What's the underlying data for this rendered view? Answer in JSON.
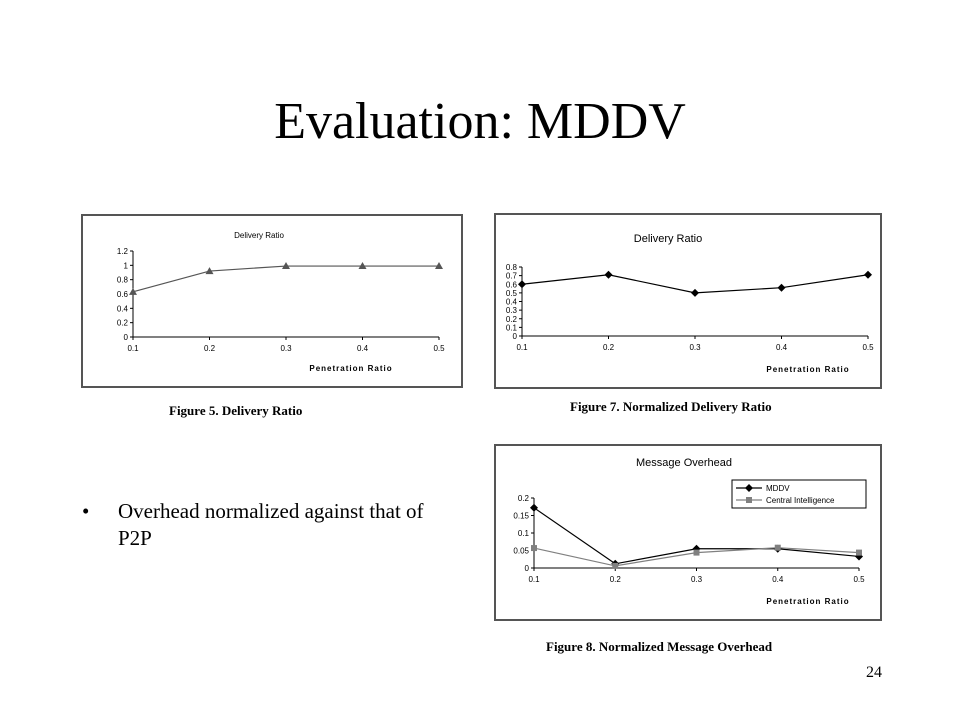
{
  "slide": {
    "title": "Evaluation: MDDV",
    "bullet": "Overhead normalized against that of P2P",
    "page_number": "24"
  },
  "chart_data": [
    {
      "id": "fig5",
      "type": "line",
      "title": "Delivery Ratio",
      "caption": "Figure 5. Delivery Ratio",
      "xlabel": "Penetration Ratio",
      "ylabel": "",
      "x": [
        0.1,
        0.2,
        0.3,
        0.4,
        0.5
      ],
      "x_tick_labels": [
        "0.1",
        "0.2",
        "0.3",
        "0.4",
        "0.5"
      ],
      "ylim": [
        0,
        1.2
      ],
      "y_ticks": [
        0,
        0.2,
        0.4,
        0.6,
        0.8,
        1,
        1.2
      ],
      "y_tick_labels": [
        "0",
        "0.2",
        "0.4",
        "0.6",
        "0.8",
        "1",
        "1.2"
      ],
      "series": [
        {
          "values": [
            0.63,
            0.92,
            0.99,
            0.99,
            0.99
          ],
          "marker": "triangle",
          "color": "#555555"
        }
      ],
      "grid": false,
      "legend": null
    },
    {
      "id": "fig7",
      "type": "line",
      "title": "Delivery Ratio",
      "caption": "Figure 7. Normalized Delivery Ratio",
      "xlabel": "Penetration Ratio",
      "ylabel": "",
      "x": [
        0.1,
        0.2,
        0.3,
        0.4,
        0.5
      ],
      "x_tick_labels": [
        "0.1",
        "0.2",
        "0.3",
        "0.4",
        "0.5"
      ],
      "ylim": [
        0,
        0.8
      ],
      "y_ticks": [
        0,
        0.1,
        0.2,
        0.3,
        0.4,
        0.5,
        0.6,
        0.7,
        0.8
      ],
      "y_tick_labels": [
        "0",
        "0.1",
        "0.2",
        "0.3",
        "0.4",
        "0.5",
        "0.6",
        "0.7",
        "0.8"
      ],
      "series": [
        {
          "values": [
            0.6,
            0.71,
            0.5,
            0.56,
            0.71
          ],
          "marker": "diamond",
          "color": "#000000"
        }
      ],
      "grid": false,
      "legend": null
    },
    {
      "id": "fig8",
      "type": "line",
      "title": "Message Overhead",
      "caption": "Figure 8. Normalized Message Overhead",
      "xlabel": "Penetration Ratio",
      "ylabel": "",
      "x": [
        0.1,
        0.2,
        0.3,
        0.4,
        0.5
      ],
      "x_tick_labels": [
        "0.1",
        "0.2",
        "0.3",
        "0.4",
        "0.5"
      ],
      "ylim": [
        0,
        0.2
      ],
      "y_ticks": [
        0,
        0.05,
        0.1,
        0.15,
        0.2
      ],
      "y_tick_labels": [
        "0",
        "0.05",
        "0.1",
        "0.15",
        "0.2"
      ],
      "series": [
        {
          "name": "MDDV",
          "values": [
            0.172,
            0.012,
            0.055,
            0.055,
            0.033
          ],
          "marker": "diamond",
          "color": "#000000"
        },
        {
          "name": "Central Intelligence",
          "values": [
            0.057,
            0.006,
            0.044,
            0.058,
            0.044
          ],
          "marker": "square",
          "color": "#808080"
        }
      ],
      "grid": false,
      "legend": "top-right"
    }
  ]
}
